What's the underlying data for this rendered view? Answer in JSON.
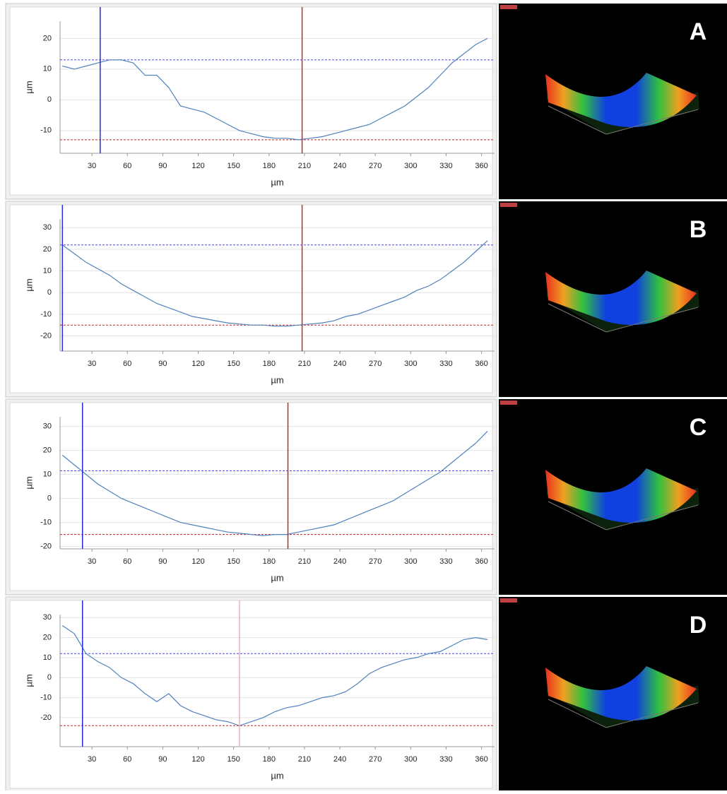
{
  "chart_data": [
    {
      "type": "line",
      "label": "A",
      "xlabel": "µm",
      "ylabel": "µm",
      "color": "#4f81bd",
      "x": [
        5,
        15,
        25,
        35,
        45,
        55,
        65,
        75,
        85,
        95,
        105,
        115,
        125,
        135,
        145,
        155,
        165,
        175,
        185,
        195,
        205,
        215,
        225,
        235,
        245,
        255,
        265,
        275,
        285,
        295,
        305,
        315,
        325,
        335,
        345,
        355,
        365
      ],
      "values": [
        11,
        10,
        11,
        12,
        13,
        13,
        12,
        8,
        8,
        4,
        -2,
        -3,
        -4,
        -6,
        -8,
        -10,
        -11,
        -12,
        -12.5,
        -12.5,
        -13,
        -12.5,
        -12,
        -11,
        -10,
        -9,
        -8,
        -6,
        -4,
        -2,
        1,
        4,
        8,
        12,
        15,
        18,
        20
      ],
      "xlim": [
        3,
        371
      ],
      "ylim": [
        -17.4,
        25.6
      ],
      "xticks": [
        30,
        60,
        90,
        120,
        150,
        180,
        210,
        240,
        270,
        300,
        330,
        360
      ],
      "yticks": [
        -10,
        0,
        10,
        20
      ],
      "vlines": [
        {
          "value": 37,
          "color": "#2a2ae0"
        },
        {
          "value": 208,
          "color": "#c0282d"
        }
      ],
      "hlines": [
        {
          "value": 13,
          "color": "#4a4ae8"
        },
        {
          "value": -13,
          "color": "#c0282d"
        }
      ]
    },
    {
      "type": "line",
      "label": "B",
      "xlabel": "µm",
      "ylabel": "µm",
      "color": "#4f81bd",
      "x": [
        5,
        15,
        25,
        35,
        45,
        55,
        65,
        75,
        85,
        95,
        105,
        115,
        125,
        135,
        145,
        155,
        165,
        175,
        185,
        195,
        205,
        215,
        225,
        235,
        245,
        255,
        265,
        275,
        285,
        295,
        305,
        315,
        325,
        335,
        345,
        355,
        365
      ],
      "values": [
        22,
        18,
        14,
        11,
        8,
        4,
        1,
        -2,
        -5,
        -7,
        -9,
        -11,
        -12,
        -13,
        -14,
        -14.5,
        -15,
        -15,
        -15.5,
        -15.5,
        -15,
        -14.5,
        -14,
        -13,
        -11,
        -10,
        -8,
        -6,
        -4,
        -2,
        1,
        3,
        6,
        10,
        14,
        19,
        24
      ],
      "xlim": [
        3,
        371
      ],
      "ylim": [
        -27,
        34
      ],
      "xticks": [
        30,
        60,
        90,
        120,
        150,
        180,
        210,
        240,
        270,
        300,
        330,
        360
      ],
      "yticks": [
        -20,
        -10,
        0,
        10,
        20,
        30
      ],
      "vlines": [
        {
          "value": 5,
          "color": "#2a2ae0"
        },
        {
          "value": 208,
          "color": "#c0282d"
        }
      ],
      "hlines": [
        {
          "value": 22,
          "color": "#4a4ae8"
        },
        {
          "value": -15,
          "color": "#c0282d"
        }
      ]
    },
    {
      "type": "line",
      "label": "C",
      "xlabel": "µm",
      "ylabel": "µm",
      "color": "#4f81bd",
      "x": [
        5,
        15,
        25,
        35,
        45,
        55,
        65,
        75,
        85,
        95,
        105,
        115,
        125,
        135,
        145,
        155,
        165,
        175,
        185,
        195,
        205,
        215,
        225,
        235,
        245,
        255,
        265,
        275,
        285,
        295,
        305,
        315,
        325,
        335,
        345,
        355,
        365
      ],
      "values": [
        18,
        14,
        10,
        6,
        3,
        0,
        -2,
        -4,
        -6,
        -8,
        -10,
        -11,
        -12,
        -13,
        -14,
        -14.5,
        -15,
        -15.5,
        -15,
        -15,
        -14,
        -13,
        -12,
        -11,
        -9,
        -7,
        -5,
        -3,
        -1,
        2,
        5,
        8,
        11,
        15,
        19,
        23,
        28
      ],
      "xlim": [
        3,
        371
      ],
      "ylim": [
        -21,
        34
      ],
      "xticks": [
        30,
        60,
        90,
        120,
        150,
        180,
        210,
        240,
        270,
        300,
        330,
        360
      ],
      "yticks": [
        -20,
        -10,
        0,
        10,
        20,
        30
      ],
      "vlines": [
        {
          "value": 22,
          "color": "#2a2ae0"
        },
        {
          "value": 196,
          "color": "#c0282d"
        }
      ],
      "hlines": [
        {
          "value": 11.5,
          "color": "#4a4ae8"
        },
        {
          "value": -15,
          "color": "#c0282d"
        }
      ]
    },
    {
      "type": "line",
      "label": "D",
      "xlabel": "µm",
      "ylabel": "µm",
      "color": "#4f81bd",
      "x": [
        5,
        15,
        25,
        35,
        45,
        55,
        65,
        75,
        85,
        95,
        105,
        115,
        125,
        135,
        145,
        155,
        165,
        175,
        185,
        195,
        205,
        215,
        225,
        235,
        245,
        255,
        265,
        275,
        285,
        295,
        305,
        315,
        325,
        335,
        345,
        355,
        365
      ],
      "values": [
        26,
        22,
        12,
        8,
        5,
        0,
        -3,
        -8,
        -12,
        -8,
        -14,
        -17,
        -19,
        -21,
        -22,
        -24,
        -22,
        -20,
        -17,
        -15,
        -14,
        -12,
        -10,
        -9,
        -7,
        -3,
        2,
        5,
        7,
        9,
        10,
        12,
        13,
        16,
        19,
        20,
        19
      ],
      "xlim": [
        3,
        371
      ],
      "ylim": [
        -34.5,
        31.5
      ],
      "xticks": [
        30,
        60,
        90,
        120,
        150,
        180,
        210,
        240,
        270,
        300,
        330,
        360
      ],
      "yticks": [
        -20,
        -10,
        0,
        10,
        20,
        30
      ],
      "vlines": [
        {
          "value": 22,
          "color": "#2a2ae0"
        },
        {
          "value": 155,
          "color": "#f0b4b4"
        }
      ],
      "hlines": [
        {
          "value": 12,
          "color": "#4a4ae8"
        },
        {
          "value": -24,
          "color": "#c0282d"
        }
      ]
    }
  ]
}
